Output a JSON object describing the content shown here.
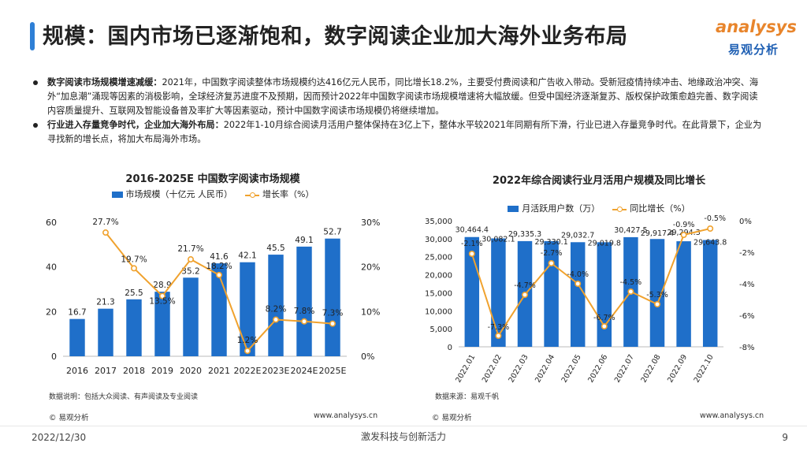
{
  "header": {
    "title": "规模：国内市场已逐渐饱和，数字阅读企业加大海外业务布局",
    "logo_en": "analysys",
    "logo_cn": "易观分析"
  },
  "bullets": [
    {
      "bold": "数字阅读市场规模增速减缓：",
      "text": "2021年，中国数字阅读整体市场规模约达416亿元人民币，同比增长18.2%，主要受付费阅读和广告收入带动。受新冠疫情持续冲击、地缘政治冲突、海外“加息潮”涌现等因素的消极影响，全球经济复苏进度不及预期，因而预计2022年中国数字阅读市场规模增速将大幅放缓。但受中国经济逐渐复苏、版权保护政策愈趋完善、数字阅读内容质量提升、互联网及智能设备普及率扩大等因素驱动，预计中国数字阅读市场规模仍将继续增加。"
    },
    {
      "bold": "行业进入存量竞争时代，企业加大海外布局：",
      "text": "2022年1-10月综合阅读月活用户整体保持在3亿上下，整体水平较2021年同期有所下滑，行业已进入存量竞争时代。在此背景下，企业为寻找新的增长点，将加大布局海外市场。"
    }
  ],
  "colors": {
    "bar": "#1f6fc9",
    "line": "#f0a22e",
    "accent": "#2e7fd6"
  },
  "charts": {
    "left": {
      "note": "数据说明：包括大众阅读、有声阅读及专业阅读",
      "footer_left": "© 易观分析",
      "footer_right": "www.analysys.cn"
    },
    "right": {
      "note": "数据来源：易观千帆",
      "footer_left": "© 易观分析",
      "footer_right": "www.analysys.cn"
    }
  },
  "chart_data": [
    {
      "type": "bar",
      "title": "2016-2025E 中国数字阅读市场规模",
      "categories": [
        "2016",
        "2017",
        "2018",
        "2019",
        "2020",
        "2021",
        "2022E",
        "2023E",
        "2024E",
        "2025E"
      ],
      "series": [
        {
          "name": "市场规模（十亿元 人民币）",
          "type": "bar",
          "axis": "left",
          "values": [
            16.7,
            21.3,
            25.5,
            28.9,
            35.2,
            41.6,
            42.1,
            45.5,
            49.1,
            52.7
          ]
        },
        {
          "name": "增长率（%）",
          "type": "line",
          "axis": "right",
          "values": [
            null,
            27.7,
            19.7,
            13.5,
            21.7,
            18.2,
            1.2,
            8.2,
            7.8,
            7.3
          ]
        }
      ],
      "ylim_left": [
        0,
        60
      ],
      "yticks_left": [
        "0",
        "20",
        "40",
        "60"
      ],
      "ylim_right": [
        0,
        30
      ],
      "yticks_right": [
        "0%",
        "10%",
        "20%",
        "30%"
      ],
      "legend": "top",
      "grid": false
    },
    {
      "type": "bar",
      "title": "2022年综合阅读行业月活用户规模及同比增长",
      "categories": [
        "2022.01",
        "2022.02",
        "2022.03",
        "2022.04",
        "2022.05",
        "2022.06",
        "2022.07",
        "2022.08",
        "2022.09",
        "2022.10"
      ],
      "series": [
        {
          "name": "月活跃用户数（万）",
          "type": "bar",
          "axis": "left",
          "values": [
            30464.4,
            30082.1,
            29335.3,
            29330.1,
            29032.7,
            29019.8,
            30427.5,
            29917.4,
            29294.3,
            29643.8
          ],
          "labels": [
            "30,464.4",
            "30,082.1",
            "29,335.3",
            "29,330.1",
            "29,032.7",
            "29,019.8",
            "30,427.5",
            "29,917.4",
            "29,294.3",
            "29,643.8"
          ]
        },
        {
          "name": "同比增长（%）",
          "type": "line",
          "axis": "right",
          "values": [
            -2.1,
            -7.3,
            -4.7,
            -2.7,
            -4.0,
            -6.7,
            -4.5,
            -5.3,
            -0.9,
            -0.5
          ]
        }
      ],
      "ylim_left": [
        0,
        35000
      ],
      "yticks_left": [
        "0",
        "5,000",
        "10,000",
        "15,000",
        "20,000",
        "25,000",
        "30,000",
        "35,000"
      ],
      "ylim_right": [
        -8,
        0
      ],
      "yticks_right": [
        "-8%",
        "-6%",
        "-4%",
        "-2%",
        "0%"
      ],
      "legend": "top",
      "grid": false
    }
  ],
  "footer": {
    "date": "2022/12/30",
    "slogan": "激发科技与创新活力",
    "page": "9"
  }
}
